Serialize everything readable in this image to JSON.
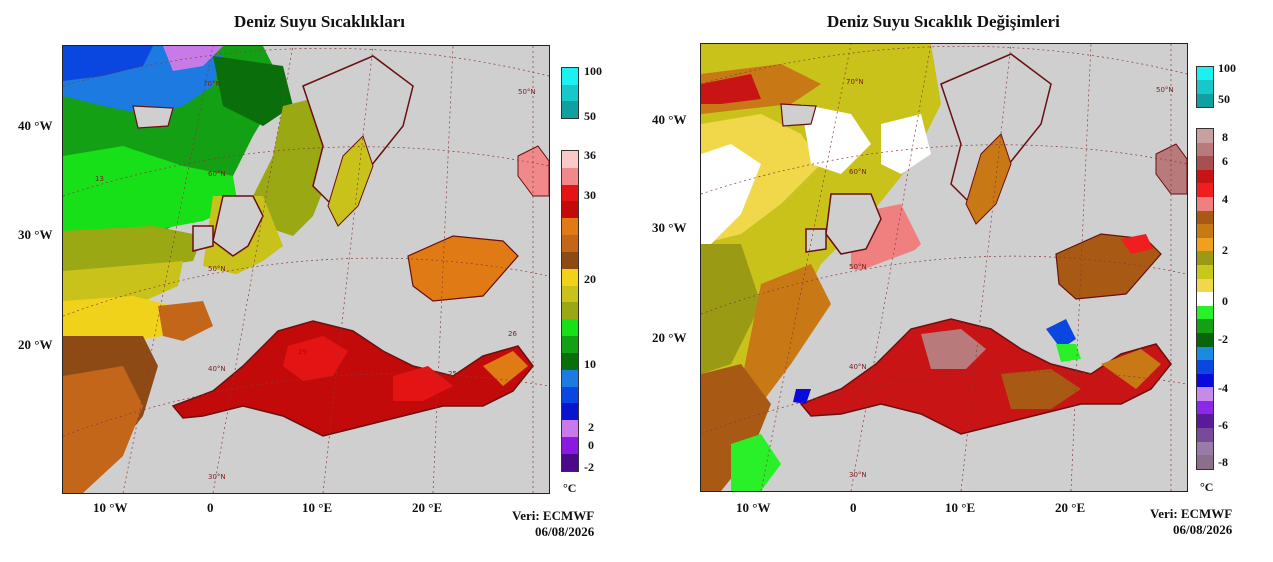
{
  "left_map": {
    "title": "Deniz Suyu Sıcaklıkları",
    "lon_labels": [
      "10 °W",
      "0",
      "10 °E",
      "20 °E"
    ],
    "lat_labels": [
      "40 °W",
      "30 °W",
      "20 °W"
    ],
    "credit_line1": "Veri: ECMWF",
    "credit_line2": "06/08/2026",
    "unit": "°C",
    "legend_top_labels": [
      "100",
      "50"
    ],
    "legend_labels": [
      "36",
      "30",
      "20",
      "10",
      "2",
      "0",
      "-2"
    ],
    "legend_colors": [
      "#f9c9c9",
      "#f08a8a",
      "#e41414",
      "#c20a0a",
      "#e07a14",
      "#c4661a",
      "#8e4a14",
      "#f0d21a",
      "#c8c21a",
      "#9aa814",
      "#18e018",
      "#14a014",
      "#0a6e0a",
      "#1c7ae0",
      "#0a46e0",
      "#0a14d0",
      "#c87ae8",
      "#8a1ae0",
      "#4a0a8a"
    ],
    "legend_top_colors": [
      "#1cf0f0",
      "#16c8c8",
      "#10a0a0"
    ],
    "grid_labels": [
      "70°N",
      "60°N",
      "50°N",
      "40°N",
      "30°N",
      "50°N"
    ],
    "contour_labels": [
      "13",
      "29",
      "25",
      "26"
    ]
  },
  "right_map": {
    "title": "Deniz Suyu Sıcaklık Değişimleri",
    "lon_labels": [
      "10 °W",
      "0",
      "10 °E",
      "20 °E"
    ],
    "lat_labels": [
      "40 °W",
      "30 °W",
      "20 °W"
    ],
    "credit_line1": "Veri: ECMWF",
    "credit_line2": "06/08/2026",
    "unit": "°C",
    "legend_top_labels": [
      "100",
      "50"
    ],
    "legend_labels": [
      "8",
      "6",
      "4",
      "2",
      "0",
      "-2",
      "-4",
      "-6",
      "-8"
    ],
    "legend_colors": [
      "#c8a0a0",
      "#b87a7a",
      "#a85050",
      "#c81414",
      "#f01e1e",
      "#f08080",
      "#a85a14",
      "#c87814",
      "#f0a01e",
      "#9a9a14",
      "#c8c81a",
      "#f0d84a",
      "#ffffff",
      "#2af02a",
      "#14a014",
      "#0a640a",
      "#1c8ae0",
      "#0a46e0",
      "#0a0adc",
      "#c88ae8",
      "#8a2ae8",
      "#5a1a9a",
      "#7a4a9a",
      "#9a7aa8",
      "#8a708a"
    ],
    "legend_top_colors": [
      "#1cf0f0",
      "#16c8c8",
      "#10a0a0"
    ],
    "grid_labels": [
      "70°N",
      "60°N",
      "50°N",
      "40°N",
      "30°N",
      "50°N"
    ]
  }
}
